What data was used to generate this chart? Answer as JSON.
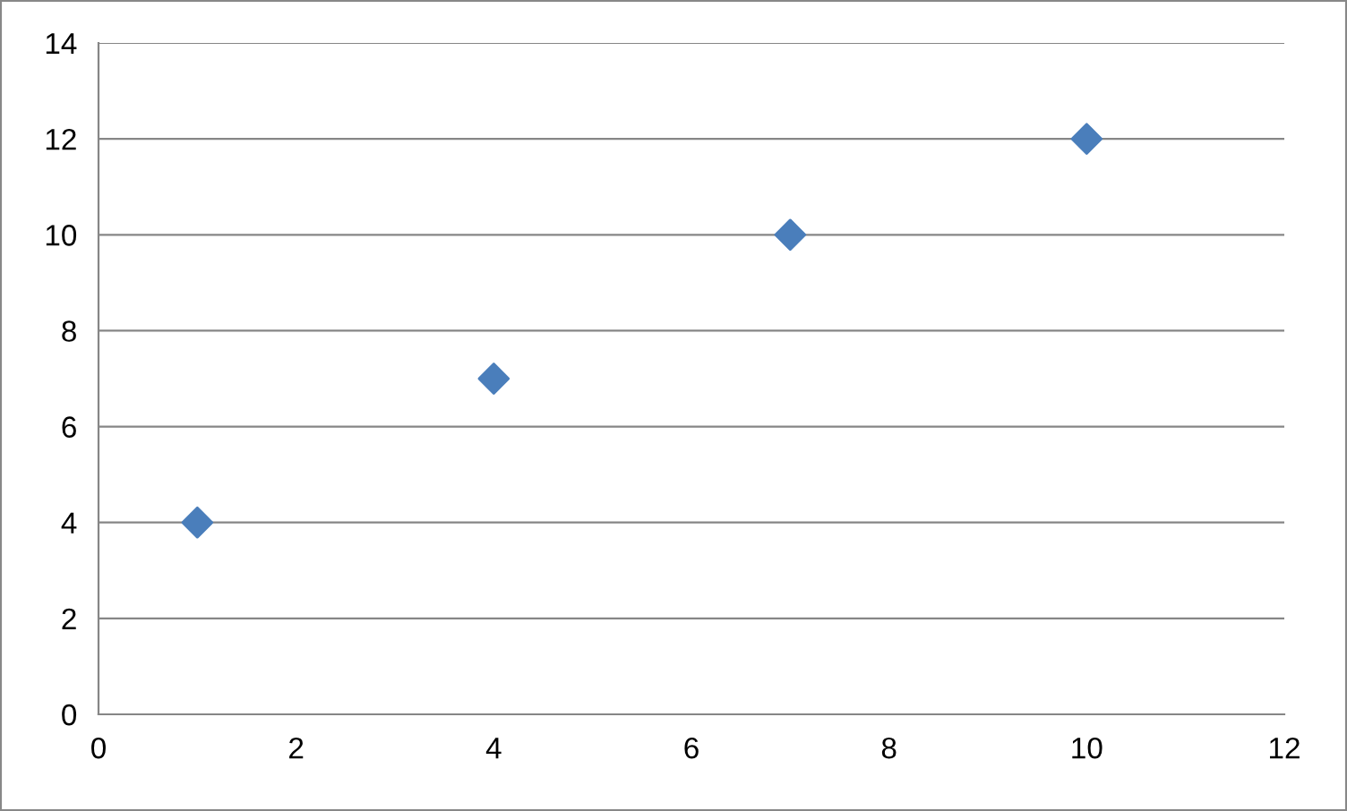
{
  "chart_data": {
    "type": "scatter",
    "x": [
      1,
      4,
      7,
      10
    ],
    "series": [
      {
        "color": "#4a7ebb",
        "values": [
          4,
          7,
          10,
          12
        ]
      }
    ],
    "xlim": [
      0,
      12
    ],
    "xticks": [
      0,
      2,
      4,
      6,
      8,
      10,
      12
    ],
    "ylim": [
      0,
      14
    ],
    "yticks": [
      0,
      2,
      4,
      6,
      8,
      10,
      12,
      14
    ],
    "grid": "y",
    "marker": "diamond"
  }
}
